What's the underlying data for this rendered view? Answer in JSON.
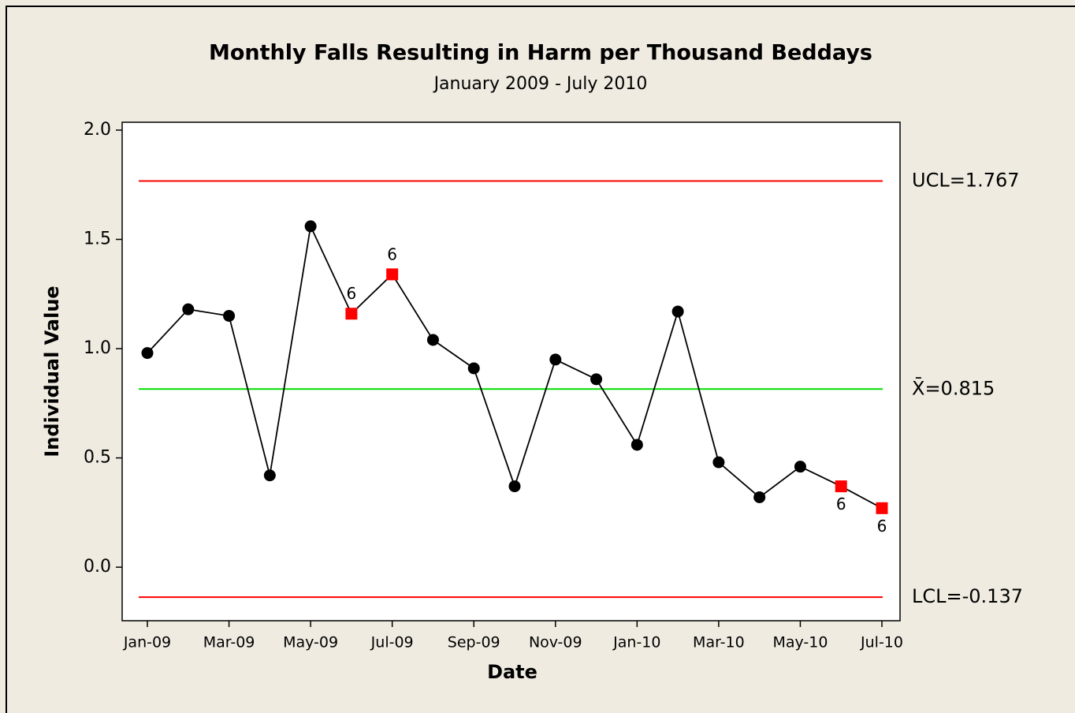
{
  "chart_data": {
    "type": "control",
    "title": "Monthly Falls Resulting in Harm per Thousand Beddays",
    "subtitle": "January 2009 - July 2010",
    "x_label": "Date",
    "y_label": "Individual Value",
    "categories": [
      "Jan-09",
      null,
      "Mar-09",
      null,
      "May-09",
      null,
      "Jul-09",
      null,
      "Sep-09",
      null,
      "Nov-09",
      null,
      "Jan-10",
      null,
      "Mar-10",
      null,
      "May-10",
      null,
      "Jul-10"
    ],
    "values": [
      0.98,
      1.18,
      1.15,
      0.42,
      1.56,
      1.16,
      1.34,
      1.04,
      0.91,
      0.37,
      0.95,
      0.86,
      0.56,
      1.17,
      0.48,
      0.32,
      0.46,
      0.37,
      0.27
    ],
    "annotations": [
      null,
      null,
      null,
      null,
      null,
      "6",
      "6",
      null,
      null,
      null,
      null,
      null,
      null,
      null,
      null,
      null,
      null,
      "6",
      "6"
    ],
    "color": "#000000",
    "flag_color": "#ff0000",
    "control_lines": [
      {
        "label": "UCL=1.767",
        "value": 1.767,
        "color": "#ff0000"
      },
      {
        "label": "X̄=0.815",
        "value": 0.815,
        "color": "#00dd00"
      },
      {
        "label": "LCL=-0.137",
        "value": -0.137,
        "color": "#ff0000"
      }
    ],
    "ylim": [
      -0.245,
      2.036
    ],
    "yticks": [
      {
        "value": 0,
        "label": "0.0"
      },
      {
        "value": 0.5,
        "label": "0.5"
      },
      {
        "value": 1,
        "label": "1.0"
      },
      {
        "value": 1.5,
        "label": "1.5"
      },
      {
        "value": 2,
        "label": "2.0"
      }
    ]
  }
}
